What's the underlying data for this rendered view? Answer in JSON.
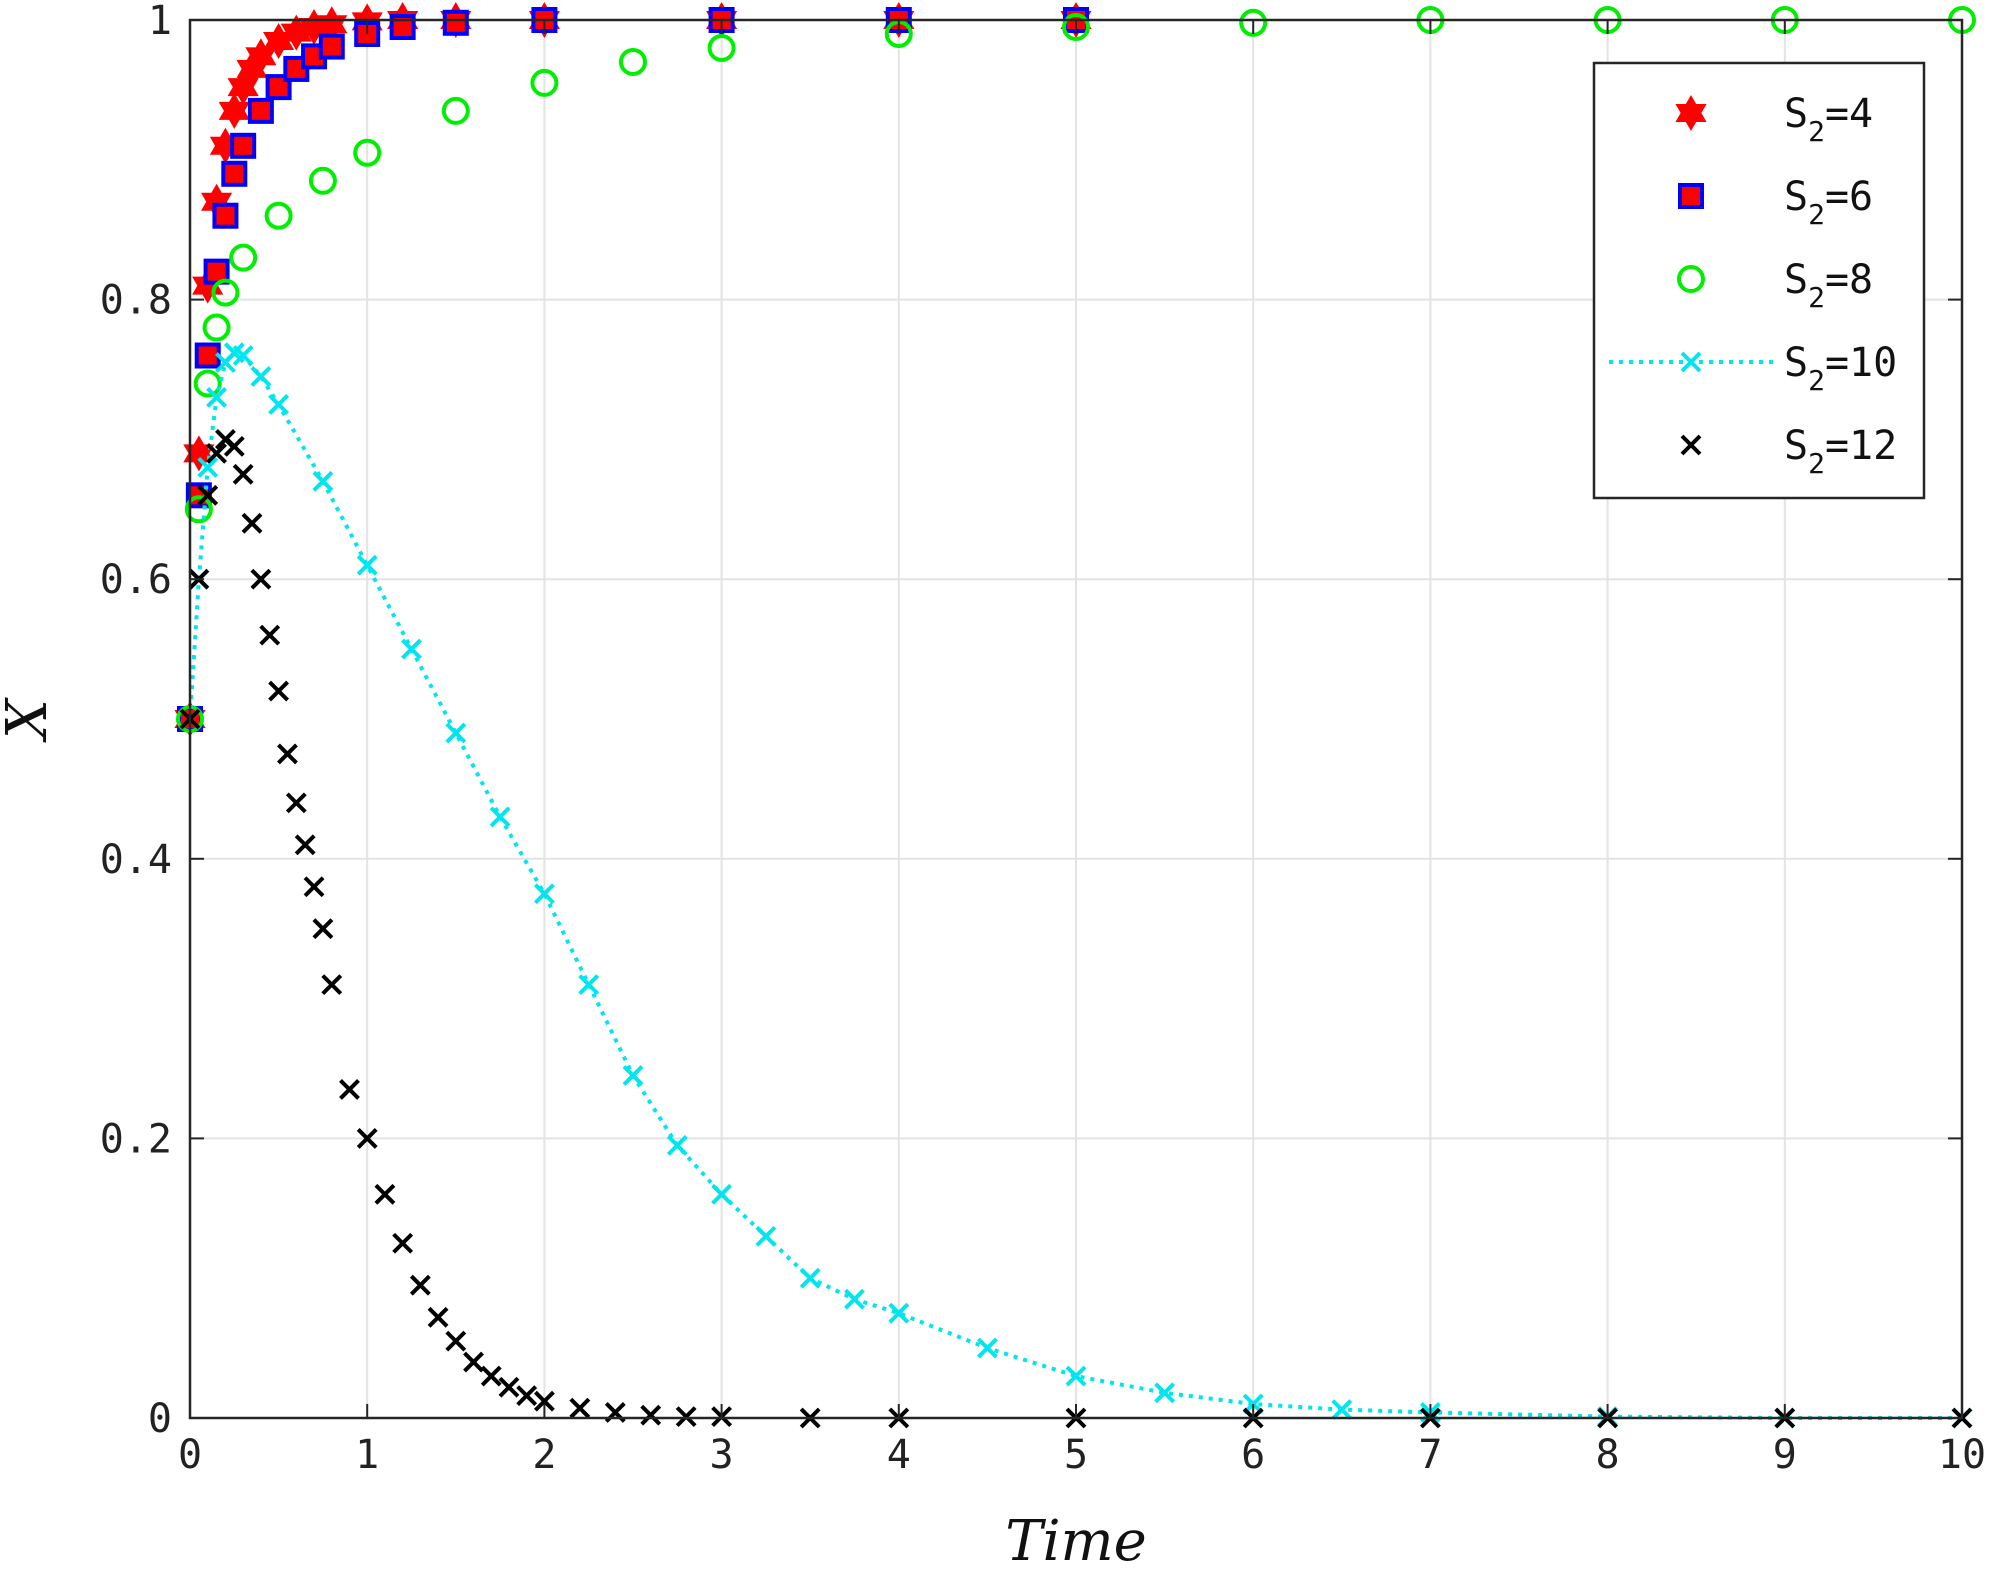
{
  "chart_data": {
    "type": "scatter",
    "title": "",
    "xlabel": "Time",
    "ylabel": "X",
    "xlim": [
      0,
      10
    ],
    "ylim": [
      0,
      1
    ],
    "xticks": [
      "0",
      "1",
      "2",
      "3",
      "4",
      "5",
      "6",
      "7",
      "8",
      "9",
      "10"
    ],
    "yticks": [
      "0",
      "0.2",
      "0.4",
      "0.6",
      "0.8",
      "1"
    ],
    "grid": true,
    "legend_position": "top-right",
    "series": [
      {
        "name": "S₂=4",
        "label_base": "S",
        "label_sub": "2",
        "label_tail": "=4",
        "marker": "hexagram",
        "color": "#ff0000",
        "line": "none",
        "x": [
          0,
          0.05,
          0.1,
          0.15,
          0.2,
          0.25,
          0.3,
          0.35,
          0.4,
          0.5,
          0.6,
          0.7,
          0.8,
          1.0,
          1.2,
          1.5,
          2.0,
          3.0,
          4.0,
          5.0
        ],
        "y": [
          0.5,
          0.69,
          0.81,
          0.87,
          0.91,
          0.935,
          0.952,
          0.965,
          0.974,
          0.985,
          0.991,
          0.995,
          0.997,
          0.999,
          1.0,
          1.0,
          1.0,
          1.0,
          1.0,
          1.0
        ]
      },
      {
        "name": "S₂=6",
        "label_base": "S",
        "label_sub": "2",
        "label_tail": "=6",
        "marker": "square",
        "color": "#0000ff",
        "fill": "#ff0000",
        "line": "none",
        "x": [
          0,
          0.05,
          0.1,
          0.15,
          0.2,
          0.25,
          0.3,
          0.4,
          0.5,
          0.6,
          0.7,
          0.8,
          1.0,
          1.2,
          1.5,
          2.0,
          3.0,
          4.0,
          5.0
        ],
        "y": [
          0.5,
          0.66,
          0.76,
          0.82,
          0.86,
          0.89,
          0.91,
          0.935,
          0.952,
          0.965,
          0.974,
          0.981,
          0.99,
          0.995,
          0.998,
          1.0,
          1.0,
          1.0,
          1.0
        ]
      },
      {
        "name": "S₂=8",
        "label_base": "S",
        "label_sub": "2",
        "label_tail": "=8",
        "marker": "circle",
        "color": "#00ee00",
        "line": "none",
        "x": [
          0,
          0.05,
          0.1,
          0.15,
          0.2,
          0.3,
          0.5,
          0.75,
          1.0,
          1.5,
          2.0,
          2.5,
          3.0,
          4.0,
          5.0,
          6.0,
          7.0,
          8.0,
          9.0,
          10.0
        ],
        "y": [
          0.5,
          0.65,
          0.74,
          0.78,
          0.805,
          0.83,
          0.86,
          0.885,
          0.905,
          0.935,
          0.955,
          0.97,
          0.98,
          0.99,
          0.995,
          0.998,
          1.0,
          1.0,
          1.0,
          1.0
        ]
      },
      {
        "name": "S₂=10",
        "label_base": "S",
        "label_sub": "2",
        "label_tail": "=10",
        "marker": "x",
        "color": "#00e5ee",
        "line": "dotted",
        "x": [
          0,
          0.05,
          0.1,
          0.15,
          0.2,
          0.25,
          0.3,
          0.4,
          0.5,
          0.75,
          1.0,
          1.25,
          1.5,
          1.75,
          2.0,
          2.25,
          2.5,
          2.75,
          3.0,
          3.25,
          3.5,
          3.75,
          4.0,
          4.5,
          5.0,
          5.5,
          6.0,
          6.5,
          7.0,
          8.0,
          9.0,
          10.0
        ],
        "y": [
          0.5,
          0.6,
          0.68,
          0.73,
          0.755,
          0.762,
          0.76,
          0.745,
          0.725,
          0.67,
          0.61,
          0.55,
          0.49,
          0.43,
          0.375,
          0.31,
          0.245,
          0.195,
          0.16,
          0.13,
          0.1,
          0.085,
          0.075,
          0.05,
          0.03,
          0.018,
          0.01,
          0.006,
          0.004,
          0.001,
          0.0,
          0.0
        ]
      },
      {
        "name": "S₂=12",
        "label_base": "S",
        "label_sub": "2",
        "label_tail": "=12",
        "marker": "x",
        "color": "#000000",
        "line": "none",
        "x": [
          0,
          0.05,
          0.1,
          0.15,
          0.2,
          0.25,
          0.3,
          0.35,
          0.4,
          0.45,
          0.5,
          0.55,
          0.6,
          0.65,
          0.7,
          0.75,
          0.8,
          0.9,
          1.0,
          1.1,
          1.2,
          1.3,
          1.4,
          1.5,
          1.6,
          1.7,
          1.8,
          1.9,
          2.0,
          2.2,
          2.4,
          2.6,
          2.8,
          3.0,
          3.5,
          4.0,
          5.0,
          6.0,
          7.0,
          8.0,
          9.0,
          10.0
        ],
        "y": [
          0.5,
          0.6,
          0.66,
          0.69,
          0.7,
          0.695,
          0.675,
          0.64,
          0.6,
          0.56,
          0.52,
          0.475,
          0.44,
          0.41,
          0.38,
          0.35,
          0.31,
          0.235,
          0.2,
          0.16,
          0.125,
          0.095,
          0.072,
          0.055,
          0.04,
          0.03,
          0.022,
          0.016,
          0.012,
          0.007,
          0.004,
          0.002,
          0.001,
          0.001,
          0.0,
          0.0,
          0.0,
          0.0,
          0.0,
          0.0,
          0.0,
          0.0
        ]
      }
    ]
  }
}
